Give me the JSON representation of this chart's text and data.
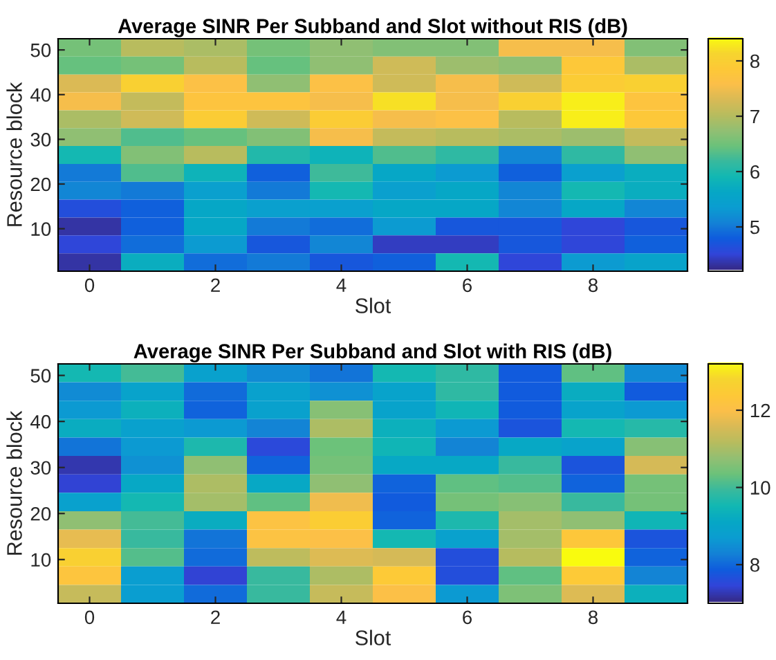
{
  "chart_data": [
    {
      "type": "heatmap",
      "title": "Average SINR Per Subband and Slot without RIS (dB)",
      "xlabel": "Slot",
      "ylabel": "Resource block",
      "categories": [
        "0",
        null,
        "2",
        null,
        "4",
        null,
        "6",
        null,
        "8",
        null
      ],
      "ylim": [
        0.5,
        52.5
      ],
      "yticks": [
        10,
        20,
        30,
        40,
        50
      ],
      "clim": [
        4.2,
        8.4
      ],
      "cticks": [
        5,
        6,
        7,
        8
      ],
      "cells": [
        [
          6.5,
          7.0,
          6.9,
          6.5,
          6.7,
          6.6,
          6.6,
          7.5,
          7.5,
          6.6
        ],
        [
          6.4,
          6.5,
          7.0,
          6.4,
          6.7,
          7.2,
          6.8,
          6.7,
          7.8,
          6.9
        ],
        [
          7.3,
          8.0,
          7.6,
          6.7,
          7.6,
          7.2,
          7.5,
          7.2,
          7.9,
          8.0
        ],
        [
          7.5,
          7.1,
          7.7,
          7.7,
          7.5,
          8.2,
          7.5,
          8.0,
          8.3,
          7.7
        ],
        [
          6.9,
          7.2,
          7.9,
          7.2,
          7.9,
          7.5,
          7.6,
          7.0,
          8.3,
          7.8
        ],
        [
          6.7,
          6.3,
          6.4,
          6.6,
          7.5,
          7.1,
          7.0,
          6.9,
          6.8,
          7.1
        ],
        [
          5.9,
          6.6,
          7.0,
          6.0,
          5.8,
          6.3,
          6.1,
          5.1,
          6.1,
          6.7
        ],
        [
          5.0,
          6.3,
          5.8,
          4.8,
          6.2,
          5.6,
          5.3,
          4.8,
          5.4,
          5.7
        ],
        [
          5.1,
          5.0,
          5.4,
          5.0,
          5.9,
          5.4,
          5.6,
          5.1,
          5.9,
          5.7
        ],
        [
          4.6,
          4.8,
          5.6,
          5.4,
          5.4,
          5.6,
          5.6,
          5.1,
          5.6,
          5.1
        ],
        [
          4.3,
          4.8,
          5.6,
          5.0,
          4.9,
          5.3,
          4.7,
          4.7,
          4.5,
          4.7
        ],
        [
          4.5,
          4.9,
          5.3,
          4.7,
          5.1,
          4.4,
          4.4,
          4.7,
          4.5,
          4.8
        ],
        [
          4.3,
          5.7,
          4.9,
          5.0,
          4.7,
          4.8,
          5.9,
          4.5,
          5.3,
          5.5
        ]
      ]
    },
    {
      "type": "heatmap",
      "title": "Average SINR Per Subband and Slot with RIS (dB)",
      "xlabel": "Slot",
      "ylabel": "Resource block",
      "categories": [
        "0",
        null,
        "2",
        null,
        "4",
        null,
        "6",
        null,
        "8",
        null
      ],
      "ylim": [
        0.5,
        52.5
      ],
      "yticks": [
        10,
        20,
        30,
        40,
        50
      ],
      "clim": [
        7.0,
        13.2
      ],
      "cticks": [
        8,
        10,
        12
      ],
      "cells": [
        [
          9.5,
          10.0,
          8.8,
          8.4,
          8.1,
          9.5,
          9.8,
          7.8,
          10.2,
          8.4
        ],
        [
          8.4,
          8.9,
          8.0,
          8.8,
          8.5,
          8.9,
          9.8,
          7.8,
          9.2,
          7.8
        ],
        [
          8.6,
          9.3,
          7.9,
          8.8,
          10.6,
          8.9,
          9.4,
          7.8,
          8.9,
          8.6
        ],
        [
          9.2,
          8.8,
          8.6,
          8.3,
          11.0,
          9.3,
          8.6,
          7.7,
          9.5,
          9.7
        ],
        [
          8.1,
          8.6,
          9.6,
          7.5,
          10.3,
          9.4,
          8.3,
          9.1,
          8.9,
          10.6
        ],
        [
          7.2,
          8.5,
          10.7,
          7.9,
          10.4,
          9.1,
          9.1,
          9.9,
          7.7,
          11.5
        ],
        [
          7.4,
          9.1,
          11.0,
          9.1,
          10.7,
          7.9,
          10.2,
          10.1,
          7.9,
          10.4
        ],
        [
          8.8,
          9.5,
          10.9,
          10.2,
          11.8,
          7.8,
          10.4,
          10.6,
          9.9,
          10.4
        ],
        [
          10.7,
          10.0,
          9.2,
          12.1,
          12.5,
          7.9,
          9.6,
          10.9,
          10.7,
          9.4
        ],
        [
          11.7,
          9.9,
          8.1,
          12.1,
          12.0,
          9.5,
          8.8,
          10.9,
          12.3,
          7.7
        ],
        [
          12.6,
          10.1,
          8.0,
          11.2,
          11.6,
          11.5,
          7.6,
          11.1,
          13.2,
          7.9
        ],
        [
          12.2,
          8.7,
          7.4,
          9.9,
          11.0,
          12.4,
          7.6,
          10.2,
          12.4,
          8.3
        ],
        [
          11.3,
          8.7,
          8.0,
          9.9,
          11.3,
          12.0,
          8.6,
          10.5,
          11.6,
          9.3
        ]
      ]
    }
  ]
}
